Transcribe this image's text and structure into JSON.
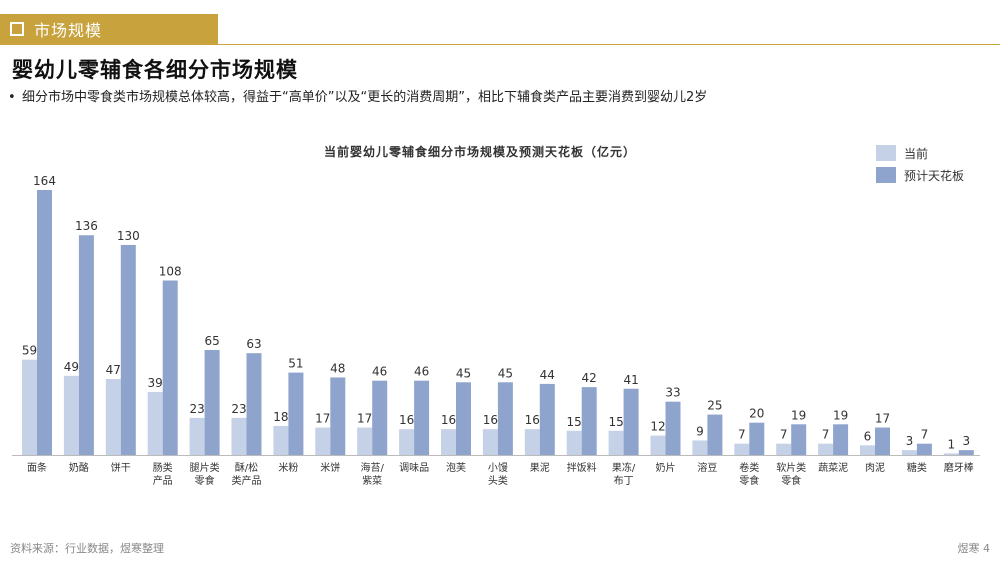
{
  "header": {
    "section_label": "市场规模"
  },
  "page": {
    "title": "婴幼儿零辅食各细分市场规模",
    "bullet": "细分市场中零食类市场规模总体较高，得益于“高单价”以及“更长的消费周期”，相比下辅食类产品主要消费到婴幼儿2岁"
  },
  "chart_data": {
    "type": "bar",
    "title": "当前婴幼儿零辅食细分市场规模及预测天花板（亿元）",
    "legend_position": "top-right",
    "categories": [
      "面条",
      "奶酪",
      "饼干",
      "肠类\n产品",
      "腿片类\n零食",
      "酥/松\n类产品",
      "米粉",
      "米饼",
      "海苔/\n紫菜",
      "调味品",
      "泡芙",
      "小馒\n头类",
      "果泥",
      "拌饭料",
      "果冻/\n布丁",
      "奶片",
      "溶豆",
      "卷类\n零食",
      "软片类\n零食",
      "蔬菜泥",
      "肉泥",
      "糖类",
      "磨牙棒"
    ],
    "series": [
      {
        "name": "当前",
        "color": "#c5d1e6",
        "values": [
          59,
          49,
          47,
          39,
          23,
          23,
          18,
          17,
          17,
          16,
          16,
          16,
          16,
          15,
          15,
          12,
          9,
          7,
          7,
          7,
          6,
          3,
          1
        ]
      },
      {
        "name": "预计天花板",
        "color": "#8ea4cc",
        "values": [
          164,
          136,
          130,
          108,
          65,
          63,
          51,
          48,
          46,
          46,
          45,
          45,
          44,
          42,
          41,
          33,
          25,
          20,
          19,
          19,
          17,
          7,
          3
        ]
      }
    ],
    "ylim": [
      0,
      164
    ],
    "grid": false
  },
  "footer": {
    "source": "资料来源：行业数据，煜寒整理",
    "page_label": "煜寒 4"
  }
}
